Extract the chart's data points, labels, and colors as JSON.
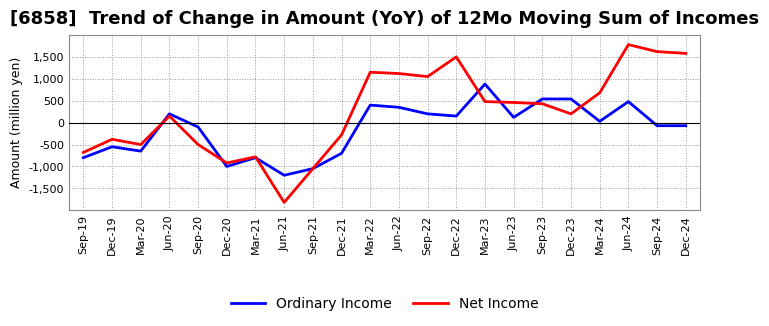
{
  "title": "[6858]  Trend of Change in Amount (YoY) of 12Mo Moving Sum of Incomes",
  "ylabel": "Amount (million yen)",
  "background_color": "#ffffff",
  "plot_bg_color": "#ffffff",
  "grid_color": "#999999",
  "x_labels": [
    "Sep-19",
    "Dec-19",
    "Mar-20",
    "Jun-20",
    "Sep-20",
    "Dec-20",
    "Mar-21",
    "Jun-21",
    "Sep-21",
    "Dec-21",
    "Mar-22",
    "Jun-22",
    "Sep-22",
    "Dec-22",
    "Mar-23",
    "Jun-23",
    "Sep-23",
    "Dec-23",
    "Mar-24",
    "Jun-24",
    "Sep-24",
    "Dec-24"
  ],
  "ordinary_income": [
    -800,
    -550,
    -650,
    200,
    -100,
    -1000,
    -800,
    -1200,
    -1050,
    -700,
    400,
    350,
    200,
    150,
    880,
    120,
    540,
    540,
    30,
    480,
    -70,
    -70
  ],
  "net_income": [
    -680,
    -380,
    -500,
    150,
    -500,
    -920,
    -780,
    -1820,
    -1050,
    -280,
    1150,
    1120,
    1050,
    1500,
    480,
    460,
    430,
    200,
    680,
    1780,
    1620,
    1580
  ],
  "ordinary_income_color": "#0000ff",
  "net_income_color": "#ff0000",
  "ylim": [
    -2000,
    2000
  ],
  "yticks": [
    -1500,
    -1000,
    -500,
    0,
    500,
    1000,
    1500
  ],
  "line_width": 2.0,
  "title_fontsize": 13,
  "legend_fontsize": 10,
  "tick_fontsize": 8,
  "ylabel_fontsize": 9
}
